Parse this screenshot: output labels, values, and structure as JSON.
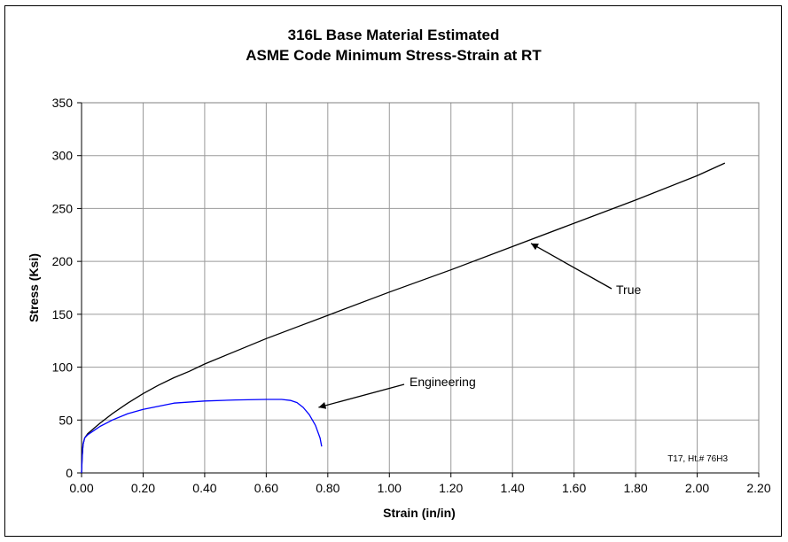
{
  "chart_data": {
    "type": "line",
    "title": "316L Base Material Estimated",
    "subtitle": "ASME Code Minimum Stress-Strain at RT",
    "xlabel": "Strain (in/in)",
    "ylabel": "Stress (Ksi)",
    "xlim": [
      0,
      2.2
    ],
    "ylim": [
      0,
      350
    ],
    "x_ticks": [
      "0.00",
      "0.20",
      "0.40",
      "0.60",
      "0.80",
      "1.00",
      "1.20",
      "1.40",
      "1.60",
      "1.80",
      "2.00",
      "2.20"
    ],
    "y_ticks": [
      "0",
      "50",
      "100",
      "150",
      "200",
      "250",
      "300",
      "350"
    ],
    "grid": true,
    "series": [
      {
        "name": "True",
        "color": "#000000",
        "x": [
          0,
          0.002,
          0.005,
          0.01,
          0.02,
          0.04,
          0.06,
          0.1,
          0.15,
          0.2,
          0.25,
          0.3,
          0.35,
          0.4,
          0.5,
          0.6,
          0.7,
          0.8,
          1.0,
          1.2,
          1.4,
          1.6,
          1.8,
          2.0,
          2.09
        ],
        "y": [
          0,
          15,
          27,
          33,
          37,
          42,
          47,
          56,
          66,
          75,
          83,
          90,
          96,
          103,
          115,
          127,
          138,
          149,
          171,
          192,
          214,
          236,
          258,
          281,
          293
        ]
      },
      {
        "name": "Engineering",
        "color": "#0000ff",
        "x": [
          0,
          0.002,
          0.005,
          0.01,
          0.02,
          0.04,
          0.06,
          0.1,
          0.15,
          0.2,
          0.25,
          0.3,
          0.4,
          0.5,
          0.6,
          0.65,
          0.68,
          0.7,
          0.72,
          0.74,
          0.76,
          0.775,
          0.78
        ],
        "y": [
          0,
          15,
          27,
          33,
          36,
          40,
          44,
          50,
          56,
          60,
          63,
          66,
          68,
          69,
          69.5,
          69.5,
          68.5,
          66.5,
          62,
          55,
          45,
          33,
          25
        ]
      }
    ],
    "annotations": [
      {
        "text": "True",
        "target_x": 1.46,
        "target_y": 217
      },
      {
        "text": "Engineering",
        "target_x": 0.77,
        "target_y": 62
      }
    ],
    "note": "T17, Ht.# 76H3"
  }
}
